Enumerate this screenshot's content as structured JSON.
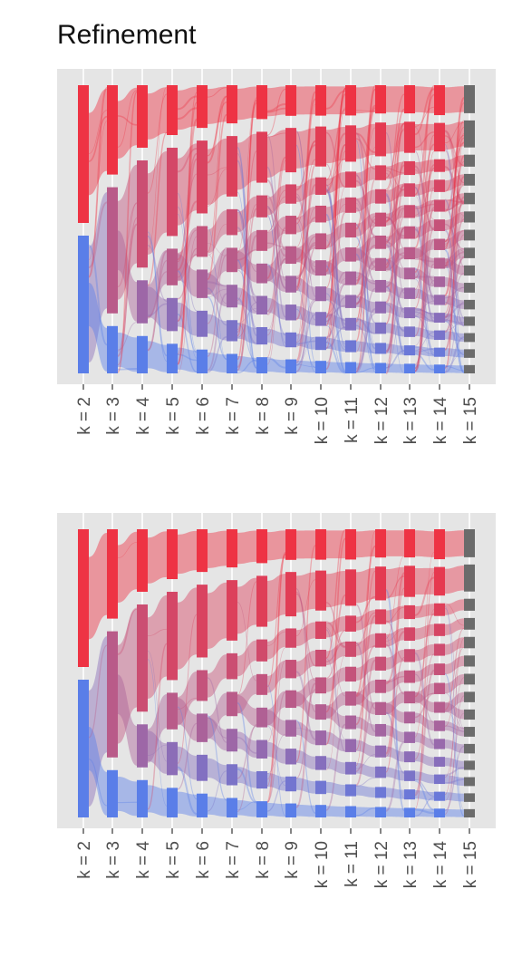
{
  "title": "Refinement",
  "colors": {
    "panel_bg": "#e5e5e5",
    "gridline": "#ffffff",
    "low_k": "#ee3344",
    "mid_k": "#b45f90",
    "high_k": "#5a7ee8",
    "final_k": "#6b6b6b"
  },
  "chart_data": [
    {
      "type": "sankey",
      "x_categories": [
        "k = 2",
        "k = 3",
        "k = 4",
        "k = 5",
        "k = 6",
        "k = 7",
        "k = 8",
        "k = 9",
        "k = 10",
        "k = 11",
        "k = 12",
        "k = 13",
        "k = 14",
        "k = 15"
      ],
      "cluster_counts": [
        2,
        3,
        4,
        5,
        6,
        7,
        8,
        9,
        10,
        11,
        12,
        13,
        14,
        15
      ],
      "top_cluster_fraction": [
        0.5,
        0.34,
        0.25,
        0.21,
        0.19,
        0.18,
        0.17,
        0.16,
        0.16,
        0.16,
        0.15,
        0.15,
        0.16,
        0.15
      ],
      "link_style": "many crossing flows"
    },
    {
      "type": "sankey",
      "x_categories": [
        "k = 2",
        "k = 3",
        "k = 4",
        "k = 5",
        "k = 6",
        "k = 7",
        "k = 8",
        "k = 9",
        "k = 10",
        "k = 11",
        "k = 12",
        "k = 13",
        "k = 14",
        "k = 15"
      ],
      "cluster_counts": [
        2,
        3,
        4,
        5,
        6,
        7,
        8,
        9,
        10,
        11,
        12,
        13,
        14,
        15
      ],
      "top_cluster_fraction": [
        0.5,
        0.34,
        0.25,
        0.21,
        0.19,
        0.18,
        0.17,
        0.16,
        0.16,
        0.16,
        0.15,
        0.15,
        0.16,
        0.15
      ],
      "link_style": "refined, mostly parallel flows"
    }
  ]
}
